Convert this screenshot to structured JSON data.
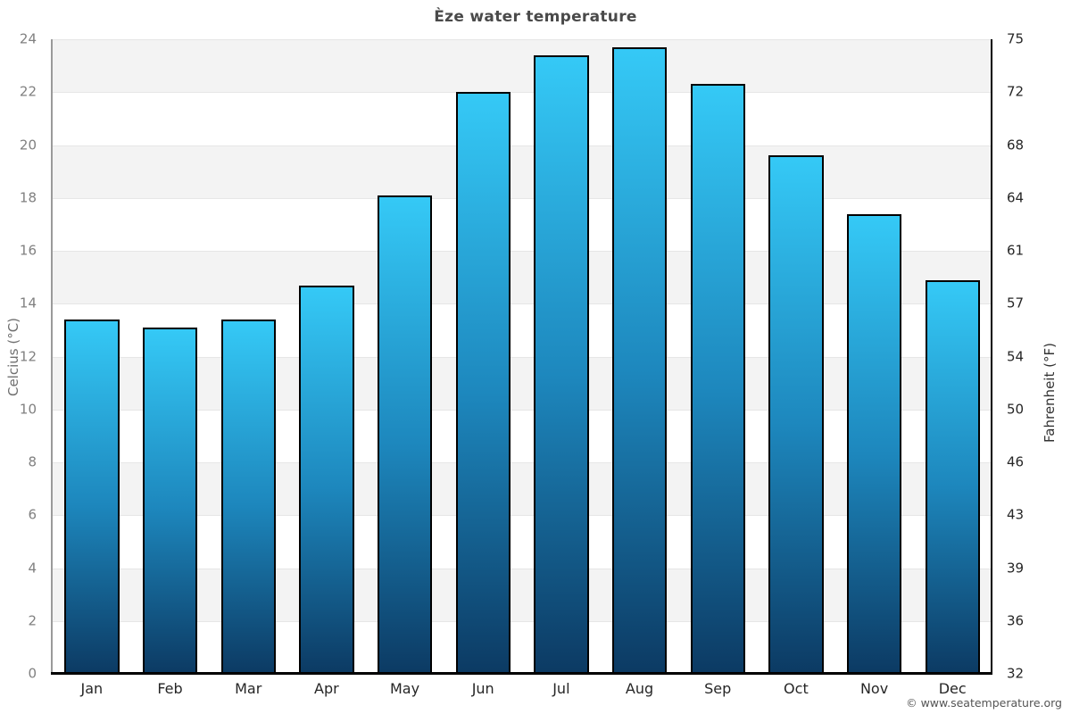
{
  "chart_data": {
    "type": "bar",
    "title": "Èze water temperature",
    "categories": [
      "Jan",
      "Feb",
      "Mar",
      "Apr",
      "May",
      "Jun",
      "Jul",
      "Aug",
      "Sep",
      "Oct",
      "Nov",
      "Dec"
    ],
    "values": [
      13.4,
      13.1,
      13.4,
      14.7,
      18.1,
      22.0,
      23.4,
      23.7,
      22.3,
      19.6,
      17.4,
      14.9
    ],
    "xlabel": "",
    "ylabel_left": "Celcius (°C)",
    "ylabel_right": "Fahrenheit (°F)",
    "ylim": [
      0,
      24
    ],
    "yticks_celsius": [
      0,
      2,
      4,
      6,
      8,
      10,
      12,
      14,
      16,
      18,
      20,
      22,
      24
    ],
    "yticks_fahrenheit": [
      32,
      36,
      39,
      43,
      46,
      50,
      54,
      57,
      61,
      64,
      68,
      72,
      75
    ],
    "legend_position": "none",
    "grid": "alternating horizontal bands, gray band between each upper tick pair starting at top",
    "colors": {
      "bar_gradient_top": "#35c9f6",
      "bar_gradient_mid": "#1d87bd",
      "bar_gradient_bottom": "#0c3a63",
      "bar_border": "#000000",
      "band_gray": "#f3f3f3",
      "band_white": "#ffffff",
      "gridline": "#e6e6e6",
      "left_tick_text": "#808080",
      "right_tick_text": "#262626",
      "month_text": "#262626",
      "title_text": "#4a4a4a",
      "copyright_text": "#555555"
    }
  },
  "footer": {
    "copyright": "© www.seatemperature.org"
  }
}
